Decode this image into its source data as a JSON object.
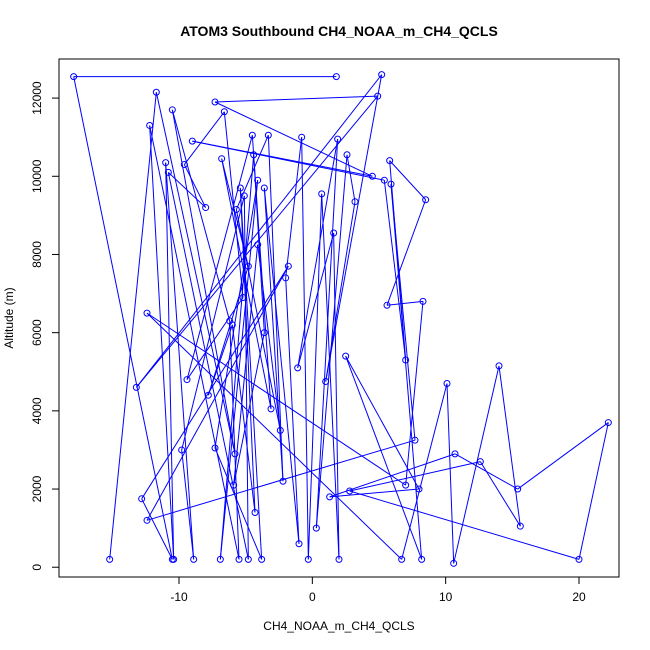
{
  "chart_data": {
    "type": "line",
    "title": "ATOM3 Southbound CH4_NOAA_m_CH4_QCLS",
    "xlabel": "CH4_NOAA_m_CH4_QCLS",
    "ylabel": "Altitude (m)",
    "xlim": [
      -19,
      23
    ],
    "ylim": [
      -250,
      13000
    ],
    "xticks": [
      -10,
      0,
      10,
      20
    ],
    "xtick_labels": [
      "-10",
      "0",
      "10",
      "20"
    ],
    "yticks": [
      0,
      2000,
      4000,
      6000,
      8000,
      10000,
      12000
    ],
    "ytick_labels": [
      "0",
      "2000",
      "4000",
      "6000",
      "8000",
      "10000",
      "12000"
    ],
    "series_color": "#0000ff",
    "marker": "open-circle",
    "series": [
      {
        "values": [
          [
            -15.2,
            200
          ],
          [
            -11.7,
            12150
          ],
          [
            -5.8,
            2900
          ],
          [
            -10.5,
            11700
          ],
          [
            -6.2,
            6300
          ],
          [
            -5.5,
            200
          ],
          [
            -12.2,
            11300
          ],
          [
            -10.4,
            200
          ],
          [
            -11.0,
            10350
          ],
          [
            -8.9,
            200
          ],
          [
            -9.8,
            3000
          ],
          [
            -5.1,
            9500
          ],
          [
            -4.8,
            200
          ],
          [
            -10.8,
            10100
          ],
          [
            -8.0,
            9200
          ],
          [
            -9.6,
            10300
          ],
          [
            -6.6,
            11650
          ],
          [
            -5.2,
            6900
          ],
          [
            -9.4,
            4800
          ],
          [
            -4.5,
            11050
          ],
          [
            -3.1,
            4050
          ],
          [
            -6.8,
            10450
          ],
          [
            -4.8,
            7700
          ],
          [
            -7.8,
            4400
          ],
          [
            -6.0,
            6200
          ],
          [
            -4.3,
            1400
          ],
          [
            -5.4,
            9700
          ],
          [
            -3.8,
            200
          ],
          [
            -7.3,
            3050
          ],
          [
            -4.1,
            9900
          ],
          [
            -6.9,
            200
          ],
          [
            -4.4,
            10550
          ],
          [
            -3.6,
            6000
          ],
          [
            -5.9,
            2100
          ],
          [
            -4.1,
            8250
          ],
          [
            -2.4,
            3500
          ],
          [
            -5.7,
            9150
          ],
          [
            -3.3,
            11050
          ],
          [
            -2.2,
            2200
          ],
          [
            -3.6,
            9700
          ],
          [
            -1.0,
            600
          ],
          [
            -2.0,
            7400
          ],
          [
            -0.8,
            11000
          ],
          [
            -0.3,
            200
          ],
          [
            0.7,
            9550
          ],
          [
            2.0,
            200
          ],
          [
            1.6,
            8550
          ],
          [
            -1.1,
            5100
          ],
          [
            1.9,
            10950
          ],
          [
            0.3,
            1000
          ],
          [
            2.6,
            10550
          ],
          [
            3.2,
            9350
          ],
          [
            1.0,
            4750
          ],
          [
            5.2,
            12600
          ],
          [
            -13.2,
            4600
          ],
          [
            4.9,
            12050
          ],
          [
            -7.3,
            11900
          ],
          [
            4.5,
            10000
          ],
          [
            -9.0,
            10900
          ],
          [
            5.4,
            9900
          ],
          [
            7.0,
            5300
          ],
          [
            5.8,
            10400
          ],
          [
            8.5,
            9400
          ],
          [
            5.6,
            6700
          ],
          [
            8.3,
            6800
          ],
          [
            7.0,
            2100
          ],
          [
            -12.4,
            6500
          ],
          [
            6.7,
            200
          ],
          [
            10.1,
            4700
          ],
          [
            10.6,
            100
          ],
          [
            14.0,
            5150
          ],
          [
            15.6,
            1050
          ],
          [
            12.6,
            2700
          ],
          [
            2.8,
            1950
          ],
          [
            20.0,
            200
          ],
          [
            22.2,
            3700
          ],
          [
            15.4,
            2000
          ],
          [
            10.7,
            2900
          ],
          [
            1.3,
            1800
          ],
          [
            8.0,
            2000
          ],
          [
            2.5,
            5400
          ],
          [
            8.2,
            200
          ],
          [
            5.9,
            9800
          ],
          [
            7.7,
            3250
          ],
          [
            -12.4,
            1200
          ],
          [
            -1.8,
            7700
          ],
          [
            -12.8,
            1750
          ],
          [
            -10.5,
            200
          ],
          [
            -17.9,
            12550
          ],
          [
            1.8,
            12550
          ]
        ]
      }
    ]
  }
}
